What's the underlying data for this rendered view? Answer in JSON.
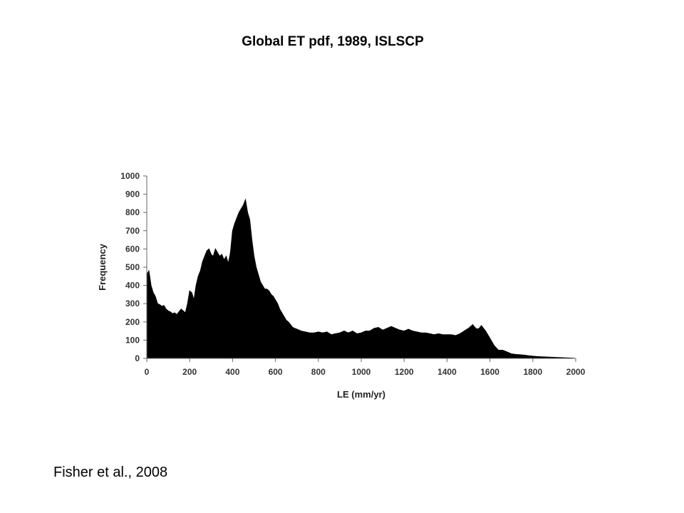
{
  "slide": {
    "title": "Global ET pdf, 1989, ISLSCP",
    "citation": "Fisher et al., 2008"
  },
  "chart_data": {
    "type": "area",
    "xlabel": "LE (mm/yr)",
    "ylabel": "Frequency",
    "xlim": [
      0,
      2000
    ],
    "ylim": [
      0,
      1000
    ],
    "xticks": [
      0,
      200,
      400,
      600,
      800,
      1000,
      1200,
      1400,
      1600,
      1800,
      2000
    ],
    "yticks": [
      0,
      100,
      200,
      300,
      400,
      500,
      600,
      700,
      800,
      900,
      1000
    ],
    "grid": false,
    "fill_color": "#000000",
    "x": [
      0,
      10,
      20,
      30,
      40,
      50,
      60,
      70,
      80,
      90,
      100,
      110,
      120,
      130,
      140,
      150,
      160,
      170,
      180,
      190,
      200,
      210,
      220,
      230,
      240,
      250,
      260,
      270,
      280,
      290,
      300,
      310,
      320,
      330,
      340,
      350,
      360,
      370,
      380,
      390,
      400,
      410,
      420,
      430,
      440,
      450,
      460,
      470,
      480,
      490,
      500,
      510,
      520,
      530,
      540,
      550,
      560,
      570,
      580,
      590,
      600,
      610,
      620,
      630,
      640,
      650,
      660,
      670,
      680,
      690,
      700,
      720,
      740,
      760,
      780,
      800,
      820,
      840,
      860,
      880,
      900,
      920,
      940,
      960,
      980,
      1000,
      1020,
      1040,
      1060,
      1080,
      1100,
      1120,
      1140,
      1160,
      1180,
      1200,
      1220,
      1240,
      1260,
      1280,
      1300,
      1320,
      1340,
      1360,
      1380,
      1400,
      1420,
      1440,
      1460,
      1480,
      1500,
      1510,
      1520,
      1530,
      1540,
      1550,
      1560,
      1570,
      1580,
      1600,
      1620,
      1640,
      1660,
      1680,
      1700,
      1720,
      1740,
      1760,
      1780,
      1800,
      1820,
      1840,
      1860,
      1880,
      1900,
      1920,
      1940,
      1960,
      1980,
      2000
    ],
    "y": [
      460,
      480,
      400,
      360,
      340,
      300,
      295,
      285,
      290,
      270,
      260,
      255,
      245,
      250,
      240,
      255,
      270,
      260,
      250,
      300,
      370,
      360,
      320,
      400,
      450,
      480,
      530,
      560,
      590,
      600,
      570,
      560,
      600,
      580,
      560,
      570,
      540,
      560,
      520,
      580,
      700,
      740,
      770,
      800,
      820,
      840,
      870,
      800,
      760,
      650,
      560,
      500,
      460,
      420,
      400,
      380,
      380,
      370,
      350,
      340,
      320,
      300,
      270,
      250,
      230,
      210,
      200,
      185,
      170,
      165,
      160,
      150,
      145,
      140,
      140,
      145,
      140,
      145,
      130,
      135,
      140,
      150,
      140,
      150,
      135,
      140,
      150,
      150,
      165,
      170,
      155,
      165,
      175,
      165,
      155,
      150,
      160,
      150,
      145,
      140,
      140,
      135,
      130,
      135,
      130,
      130,
      130,
      125,
      135,
      150,
      165,
      175,
      185,
      170,
      160,
      165,
      180,
      165,
      150,
      110,
      70,
      45,
      45,
      35,
      25,
      22,
      20,
      18,
      15,
      12,
      10,
      9,
      8,
      7,
      6,
      5,
      4,
      3,
      2,
      0
    ]
  }
}
